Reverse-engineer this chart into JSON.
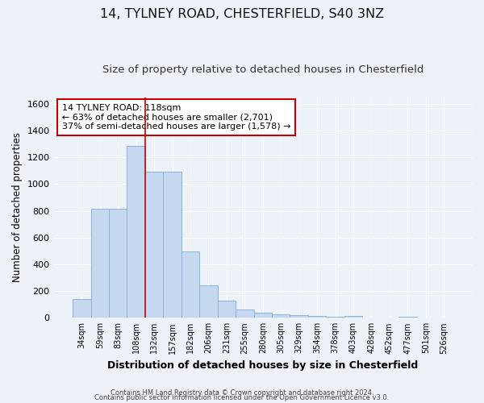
{
  "title1": "14, TYLNEY ROAD, CHESTERFIELD, S40 3NZ",
  "title2": "Size of property relative to detached houses in Chesterfield",
  "xlabel": "Distribution of detached houses by size in Chesterfield",
  "ylabel": "Number of detached properties",
  "categories": [
    "34sqm",
    "59sqm",
    "83sqm",
    "108sqm",
    "132sqm",
    "157sqm",
    "182sqm",
    "206sqm",
    "231sqm",
    "255sqm",
    "280sqm",
    "305sqm",
    "329sqm",
    "354sqm",
    "378sqm",
    "403sqm",
    "428sqm",
    "452sqm",
    "477sqm",
    "501sqm",
    "526sqm"
  ],
  "values": [
    140,
    815,
    815,
    1285,
    1090,
    1090,
    495,
    240,
    130,
    65,
    38,
    25,
    20,
    15,
    8,
    15,
    2,
    2,
    8,
    2,
    2
  ],
  "bar_color": "#c5d8f0",
  "bar_edge_color": "#8ab4d8",
  "vline_color": "#cc0000",
  "annotation_line1": "14 TYLNEY ROAD: 118sqm",
  "annotation_line2": "← 63% of detached houses are smaller (2,701)",
  "annotation_line3": "37% of semi-detached houses are larger (1,578) →",
  "annotation_box_color": "#ffffff",
  "annotation_box_edge": "#cc0000",
  "ylim": [
    0,
    1650
  ],
  "yticks": [
    0,
    200,
    400,
    600,
    800,
    1000,
    1200,
    1400,
    1600
  ],
  "footer1": "Contains HM Land Registry data © Crown copyright and database right 2024.",
  "footer2": "Contains public sector information licensed under the Open Government Licence v3.0.",
  "bg_color": "#edf2f9",
  "grid_color": "#ffffff",
  "title1_fontsize": 11.5,
  "title2_fontsize": 9.5,
  "xlabel_fontsize": 9,
  "ylabel_fontsize": 8.5
}
